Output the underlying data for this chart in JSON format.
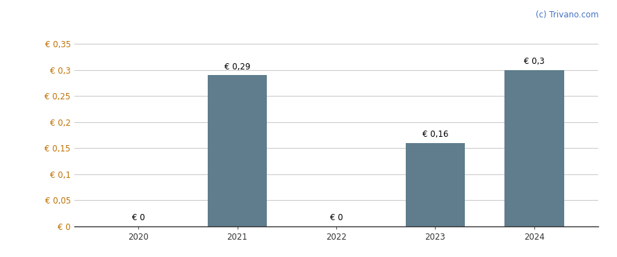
{
  "categories": [
    "2020",
    "2021",
    "2022",
    "2023",
    "2024"
  ],
  "values": [
    0,
    0.29,
    0,
    0.16,
    0.3
  ],
  "bar_color": "#5f7d8c",
  "bar_labels": [
    "€ 0",
    "€ 0,29",
    "€ 0",
    "€ 0,16",
    "€ 0,3"
  ],
  "ylim": [
    0,
    0.375
  ],
  "yticks": [
    0,
    0.05,
    0.1,
    0.15,
    0.2,
    0.25,
    0.3,
    0.35
  ],
  "ytick_labels": [
    "€ 0",
    "€ 0,05",
    "€ 0,1",
    "€ 0,15",
    "€ 0,2",
    "€ 0,25",
    "€ 0,3",
    "€ 0,35"
  ],
  "background_color": "#ffffff",
  "grid_color": "#cccccc",
  "watermark": "(c) Trivano.com",
  "bar_width": 0.6,
  "label_fontsize": 8.5,
  "tick_fontsize": 8.5,
  "watermark_fontsize": 8.5,
  "watermark_color": "#4472c4",
  "ytick_color": "#c07000",
  "xtick_color": "#333333"
}
